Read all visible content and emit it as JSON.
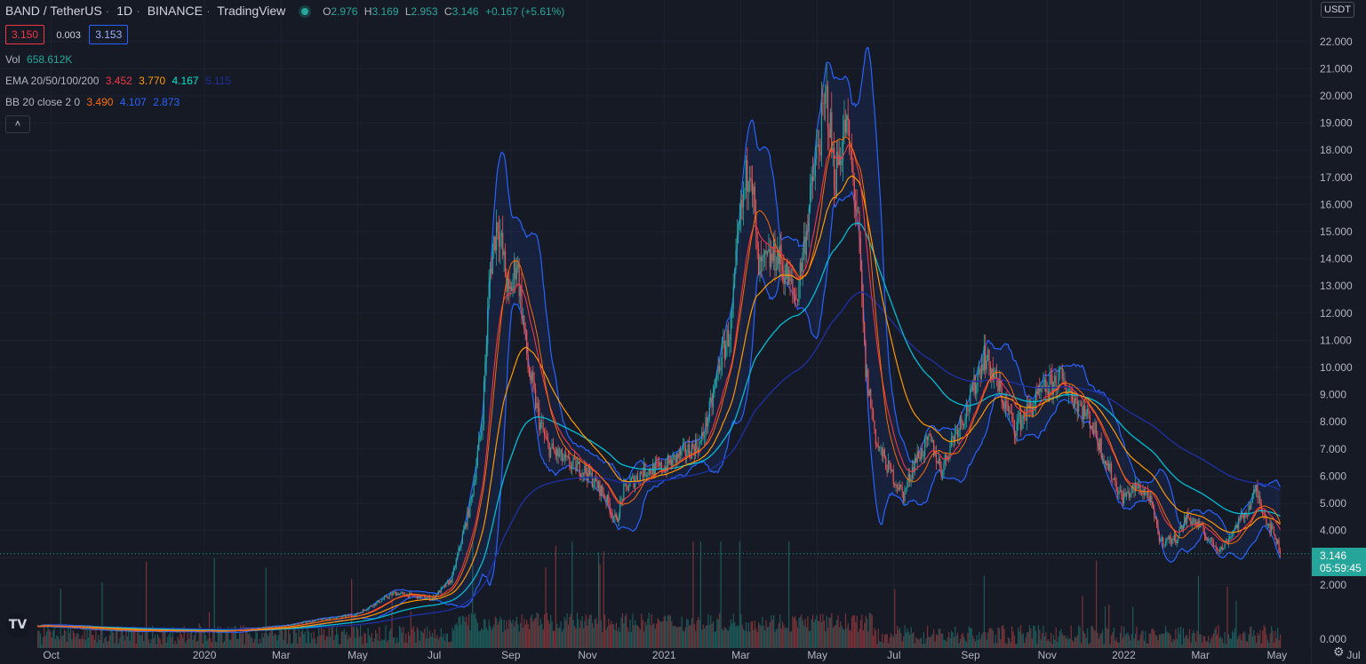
{
  "header": {
    "symbol": "BAND / TetherUS",
    "interval": "1D",
    "exchange": "BINANCE",
    "platform": "TradingView",
    "status_color": "#26a69a",
    "open_key": "O",
    "open": "2.976",
    "high_key": "H",
    "high": "3.169",
    "low_key": "L",
    "low": "2.953",
    "close_key": "C",
    "close": "3.146",
    "change": "+0.167 (+5.61%)",
    "bid": "3.150",
    "spread": "0.003",
    "ask": "3.153"
  },
  "indicators": {
    "vol_label": "Vol",
    "vol_value": "658.612K",
    "ema_label": "EMA 20/50/100/200",
    "ema20": "3.452",
    "ema50": "3.770",
    "ema100": "4.167",
    "ema200": "5.115",
    "bb_label": "BB 20 close 2 0",
    "bb_basis": "3.490",
    "bb_upper": "4.107",
    "bb_lower": "2.873",
    "colors": {
      "ema20": "#f23645",
      "ema50": "#ff9800",
      "ema100": "#00bcd4",
      "ema200": "#1e2f9e",
      "bb_basis": "#ff6d00",
      "bb_band": "#2962ff"
    }
  },
  "controls": {
    "collapse_icon": "chevron-up-icon",
    "currency": "USDT",
    "settings_icon": "gear-icon"
  },
  "last_price": {
    "price": "3.146",
    "countdown": "05:59:45"
  },
  "logo_text": "TV",
  "chart_data": {
    "type": "candlestick",
    "title": "BAND / TetherUS · 1D · BINANCE",
    "y_ticks": [
      "2.000",
      "3.000",
      "4.000",
      "5.000",
      "6.000",
      "7.000",
      "8.000",
      "9.000",
      "10.000",
      "11.000",
      "12.000",
      "13.000",
      "14.000",
      "15.000",
      "16.000",
      "17.000",
      "18.000",
      "19.000",
      "20.000",
      "21.000",
      "22.000"
    ],
    "y_bottom_label": "0.000",
    "ylim": [
      0,
      23.1
    ],
    "x_ticks": [
      {
        "label": "Oct",
        "t": 0.05
      },
      {
        "label": "2020",
        "t": 4.05
      },
      {
        "label": "Mar",
        "t": 6.05
      },
      {
        "label": "May",
        "t": 8.05
      },
      {
        "label": "Jul",
        "t": 10.05
      },
      {
        "label": "Sep",
        "t": 12.05
      },
      {
        "label": "Nov",
        "t": 14.05
      },
      {
        "label": "2021",
        "t": 16.05
      },
      {
        "label": "Mar",
        "t": 18.05
      },
      {
        "label": "May",
        "t": 20.05
      },
      {
        "label": "Jul",
        "t": 22.05
      },
      {
        "label": "Sep",
        "t": 24.05
      },
      {
        "label": "Nov",
        "t": 26.05
      },
      {
        "label": "2022",
        "t": 28.05
      },
      {
        "label": "Mar",
        "t": 30.05
      },
      {
        "label": "May",
        "t": 32.05
      },
      {
        "label": "Jul",
        "t": 34.05
      }
    ],
    "price_path": [
      [
        -0.3,
        0.5
      ],
      [
        0.5,
        0.45
      ],
      [
        1.5,
        0.35
      ],
      [
        3,
        0.3
      ],
      [
        4.5,
        0.3
      ],
      [
        6,
        0.45
      ],
      [
        7,
        0.7
      ],
      [
        8,
        0.9
      ],
      [
        9,
        1.7
      ],
      [
        10,
        1.5
      ],
      [
        10.5,
        2.2
      ],
      [
        11,
        5
      ],
      [
        11.3,
        8
      ],
      [
        11.5,
        13.5
      ],
      [
        11.7,
        15.5
      ],
      [
        12,
        12.5
      ],
      [
        12.2,
        14
      ],
      [
        12.5,
        10
      ],
      [
        12.8,
        8
      ],
      [
        13,
        7.1
      ],
      [
        13.5,
        6.5
      ],
      [
        14,
        6.2
      ],
      [
        14.5,
        5.3
      ],
      [
        14.8,
        4.3
      ],
      [
        15,
        5.5
      ],
      [
        15.5,
        6.2
      ],
      [
        16,
        6.3
      ],
      [
        16.5,
        6.8
      ],
      [
        17,
        7.2
      ],
      [
        17.3,
        8.7
      ],
      [
        17.5,
        10.2
      ],
      [
        17.8,
        11.5
      ],
      [
        18,
        15
      ],
      [
        18.3,
        18
      ],
      [
        18.5,
        13.5
      ],
      [
        19,
        14.2
      ],
      [
        19.5,
        12.5
      ],
      [
        20,
        17.5
      ],
      [
        20.3,
        20
      ],
      [
        20.5,
        17
      ],
      [
        20.8,
        19
      ],
      [
        21.1,
        15.5
      ],
      [
        21.3,
        10
      ],
      [
        21.6,
        7.2
      ],
      [
        21.9,
        6.3
      ],
      [
        22.3,
        5.3
      ],
      [
        22.6,
        6.6
      ],
      [
        23,
        7.3
      ],
      [
        23.3,
        6.2
      ],
      [
        23.6,
        7.5
      ],
      [
        24,
        8.6
      ],
      [
        24.4,
        10.5
      ],
      [
        24.8,
        9.2
      ],
      [
        25.2,
        7.8
      ],
      [
        25.6,
        8.5
      ],
      [
        26,
        9.2
      ],
      [
        26.4,
        9.6
      ],
      [
        26.8,
        8.8
      ],
      [
        27.2,
        8
      ],
      [
        27.6,
        6.5
      ],
      [
        28,
        5.2
      ],
      [
        28.4,
        5.6
      ],
      [
        28.7,
        5.3
      ],
      [
        29,
        3.6
      ],
      [
        29.4,
        3.7
      ],
      [
        29.7,
        4.5
      ],
      [
        30,
        4.2
      ],
      [
        30.3,
        3.6
      ],
      [
        30.6,
        3.3
      ],
      [
        31,
        4.2
      ],
      [
        31.3,
        4.8
      ],
      [
        31.5,
        5.5
      ],
      [
        31.8,
        4.3
      ],
      [
        32,
        3.8
      ],
      [
        32.15,
        3.146
      ]
    ],
    "series": [
      {
        "name": "EMA 20"
      },
      {
        "name": "EMA 50"
      },
      {
        "name": "EMA 100"
      },
      {
        "name": "EMA 200"
      },
      {
        "name": "BB 20 close 2 0"
      },
      {
        "name": "Vol"
      }
    ],
    "last_value": 3.146
  }
}
